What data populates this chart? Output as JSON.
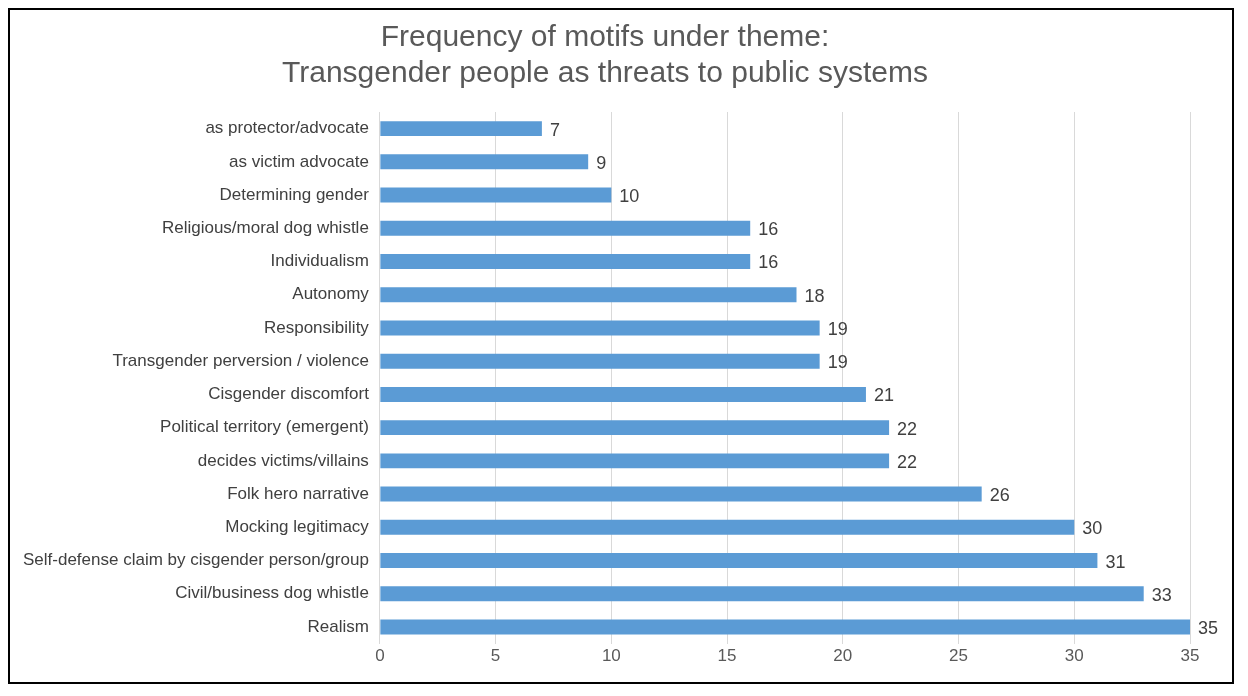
{
  "chart_data": {
    "type": "bar",
    "orientation": "horizontal",
    "title": "Frequency of motifs under theme:\nTransgender people as threats to public systems",
    "categories": [
      "as protector/advocate",
      "as victim advocate",
      "Determining gender",
      "Religious/moral dog whistle",
      "Individualism",
      "Autonomy",
      "Responsibility",
      "Transgender perversion / violence",
      "Cisgender discomfort",
      "Political territory (emergent)",
      "decides victims/villains",
      "Folk hero narrative",
      "Mocking legitimacy",
      "Self-defense claim by cisgender person/group",
      "Civil/business dog whistle",
      "Realism"
    ],
    "values": [
      7,
      9,
      10,
      16,
      16,
      18,
      19,
      19,
      21,
      22,
      22,
      26,
      30,
      31,
      33,
      35
    ],
    "color": "#5b9bd5",
    "xlim": [
      0,
      35
    ],
    "xticks": [
      0,
      5,
      10,
      15,
      20,
      25,
      30,
      35
    ],
    "grid": "x",
    "data_labels": true,
    "legend": false
  }
}
